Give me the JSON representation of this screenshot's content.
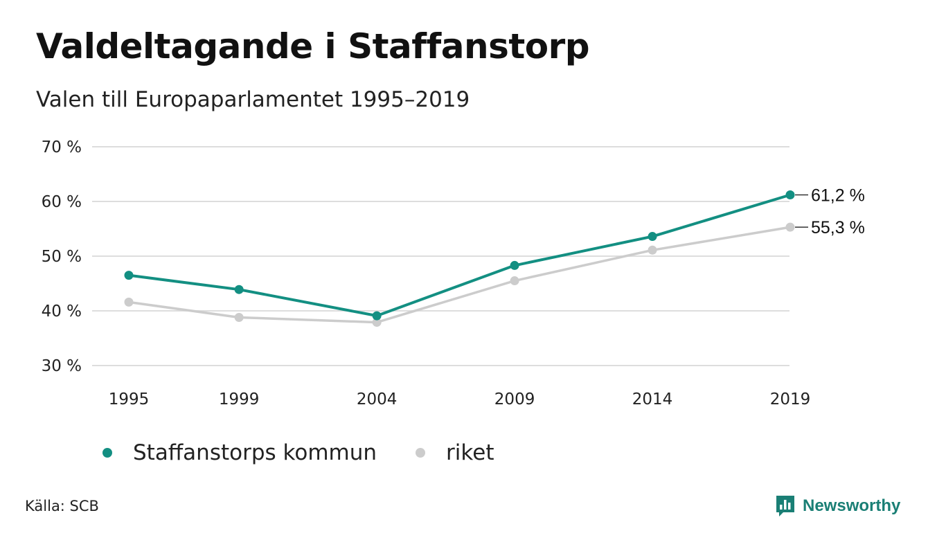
{
  "title": "Valdeltagande i Staffanstorp",
  "subtitle": "Valen till Europaparlamentet 1995–2019",
  "source": "Källa: SCB",
  "brand": {
    "name": "Newsworthy",
    "color": "#1a7f75",
    "icon": "bar-chart-logo-icon"
  },
  "chart_data": {
    "type": "line",
    "categories": [
      "1995",
      "1999",
      "2004",
      "2009",
      "2014",
      "2019"
    ],
    "x": [
      1995,
      1999,
      2004,
      2009,
      2014,
      2019
    ],
    "series": [
      {
        "name": "Staffanstorps kommun",
        "color": "#138f82",
        "values": [
          46.5,
          43.9,
          39.1,
          48.3,
          53.6,
          61.2
        ]
      },
      {
        "name": "riket",
        "color": "#cccccc",
        "values": [
          41.6,
          38.8,
          37.9,
          45.5,
          51.1,
          55.3
        ]
      }
    ],
    "yticks": [
      30,
      40,
      50,
      60,
      70
    ],
    "ytick_labels": [
      "30 %",
      "40 %",
      "50 %",
      "60 %",
      "70 %"
    ],
    "ylim": [
      30,
      70
    ],
    "end_labels": [
      "61,2 %",
      "55,3 %"
    ],
    "grid": true,
    "legend": "bottom"
  }
}
